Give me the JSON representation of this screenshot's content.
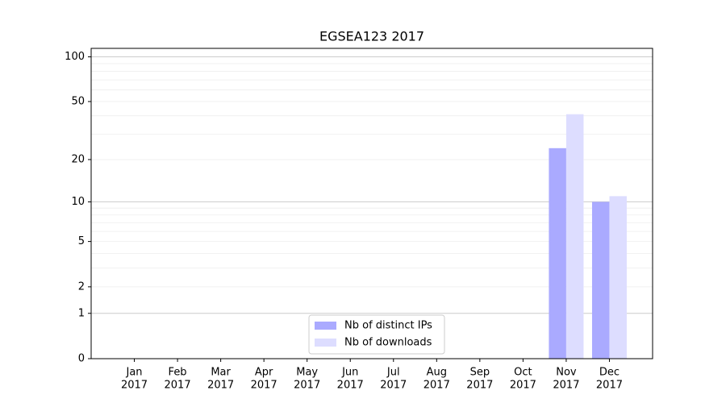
{
  "chart_data": {
    "type": "bar",
    "title": "EGSEA123 2017",
    "categories": [
      [
        "Jan",
        "2017"
      ],
      [
        "Feb",
        "2017"
      ],
      [
        "Mar",
        "2017"
      ],
      [
        "Apr",
        "2017"
      ],
      [
        "May",
        "2017"
      ],
      [
        "Jun",
        "2017"
      ],
      [
        "Jul",
        "2017"
      ],
      [
        "Aug",
        "2017"
      ],
      [
        "Sep",
        "2017"
      ],
      [
        "Oct",
        "2017"
      ],
      [
        "Nov",
        "2017"
      ],
      [
        "Dec",
        "2017"
      ]
    ],
    "series": [
      {
        "name": "Nb of distinct IPs",
        "color": "#aaaaff",
        "values": [
          0,
          0,
          0,
          0,
          0,
          0,
          0,
          0,
          0,
          0,
          24,
          10
        ]
      },
      {
        "name": "Nb of downloads",
        "color": "#ddddff",
        "values": [
          0,
          0,
          0,
          0,
          0,
          0,
          0,
          0,
          0,
          0,
          41,
          11
        ]
      }
    ],
    "yscale": "log1p",
    "ylim": [
      0,
      114
    ],
    "yticks": [
      0,
      1,
      2,
      5,
      10,
      20,
      50,
      100
    ],
    "major_grid": [
      1,
      10,
      100
    ],
    "minor_grid": [
      2,
      3,
      4,
      5,
      6,
      7,
      8,
      9,
      20,
      30,
      40,
      50,
      60,
      70,
      80,
      90
    ],
    "grid": true,
    "legend": "lower center"
  }
}
